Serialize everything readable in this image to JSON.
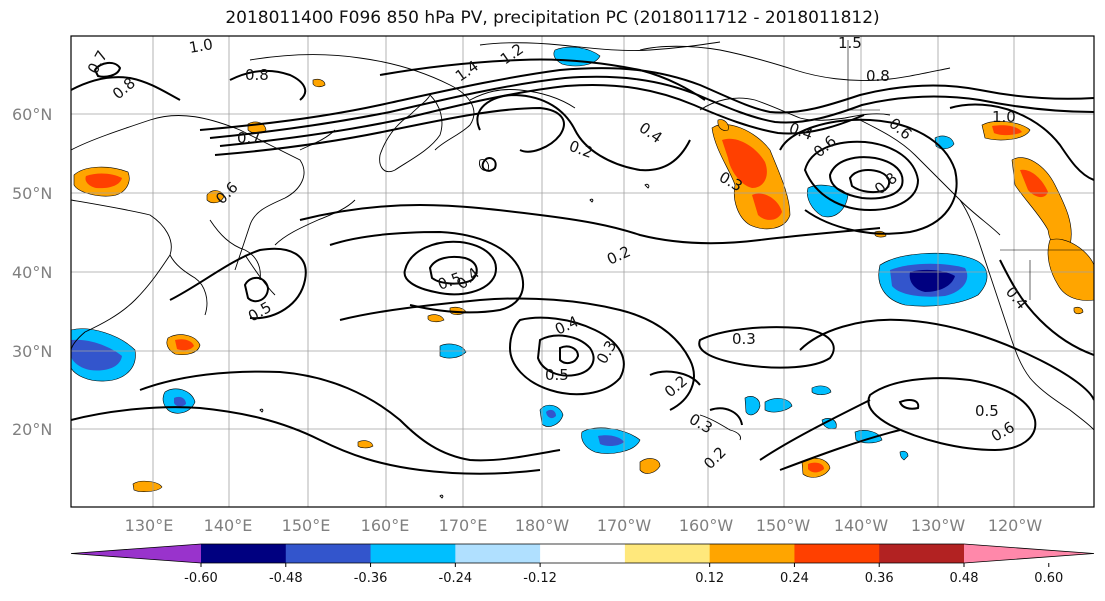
{
  "title": "2018011400 F096 850 hPa PV, precipitation PC (2018011712 - 2018011812)",
  "latitude_labels": [
    "60°N",
    "50°N",
    "40°N",
    "30°N",
    "20°N"
  ],
  "longitude_labels": [
    "130°E",
    "140°E",
    "150°E",
    "160°E",
    "170°E",
    "180°W",
    "170°W",
    "160°W",
    "150°W",
    "140°W",
    "130°W",
    "120°W"
  ],
  "colorbar": {
    "colors": [
      "#9933cc",
      "#000080",
      "#3355cc",
      "#00bfff",
      "#b0e0ff",
      "#ffffff",
      "#ffe87c",
      "#ffa500",
      "#ff4000",
      "#b22222",
      "#ff88aa"
    ],
    "tick_labels": [
      "-0.60",
      "-0.48",
      "-0.36",
      "-0.24",
      "-0.12",
      "0.12",
      "0.24",
      "0.36",
      "0.48",
      "0.60"
    ]
  },
  "contour_labels": [
    "1.0",
    "0.8",
    "0.7",
    "0.7",
    "0.8",
    "0.6",
    "1.4",
    "1.2",
    "0.4",
    "0.2",
    "0.3",
    "0.4",
    "0.8",
    "0.6",
    "0.8",
    "1.0",
    "0.6",
    "0.5",
    "0.4",
    "0.2",
    "0.4",
    "0.5",
    "0.3",
    "0.3",
    "0.2",
    "0.3",
    "0.2",
    "0.5",
    "0.6",
    "0.4",
    "1.5"
  ]
}
